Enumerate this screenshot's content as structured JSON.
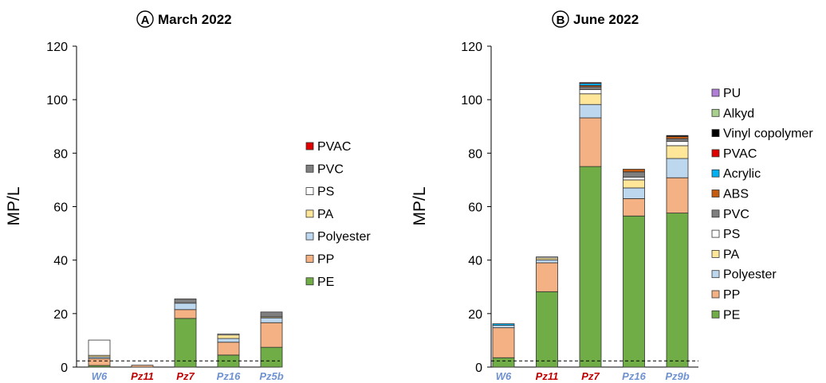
{
  "chart_data": [
    {
      "type": "bar",
      "stacked": true,
      "panel_letter": "A",
      "title": "March 2022",
      "ylabel": "MP/L",
      "ylim": [
        0,
        120
      ],
      "yticks": [
        0,
        20,
        40,
        60,
        80,
        100,
        120
      ],
      "dashed_reference_line": 2.3,
      "categories": [
        {
          "label": "W6",
          "color": "#6f92d0"
        },
        {
          "label": "Pz11",
          "color": "#c00000"
        },
        {
          "label": "Pz7",
          "color": "#c00000"
        },
        {
          "label": "Pz16",
          "color": "#6f92d0"
        },
        {
          "label": "Pz5b",
          "color": "#6f92d0"
        }
      ],
      "series": [
        {
          "name": "PE",
          "color": "#70ad47",
          "values": [
            0.6,
            0,
            18.2,
            4.5,
            7.4
          ]
        },
        {
          "name": "PP",
          "color": "#f4b183",
          "values": [
            2.6,
            0.7,
            3.3,
            4.8,
            9.2
          ]
        },
        {
          "name": "Polyester",
          "color": "#bdd7ee",
          "values": [
            0.6,
            0,
            2.4,
            1.4,
            1.8
          ]
        },
        {
          "name": "PA",
          "color": "#ffe699",
          "values": [
            0.6,
            0,
            0,
            1.3,
            0.4
          ]
        },
        {
          "name": "PS",
          "color": "#ffffff",
          "values": [
            5.7,
            0,
            0,
            0.4,
            0
          ]
        },
        {
          "name": "PVC",
          "color": "#7f7f7f",
          "values": [
            0,
            0,
            1.6,
            0,
            1.8
          ]
        },
        {
          "name": "PVAC",
          "color": "#e00000",
          "values": [
            0,
            0,
            0,
            0,
            0
          ]
        }
      ],
      "legend_position": "right"
    },
    {
      "type": "bar",
      "stacked": true,
      "panel_letter": "B",
      "title": "June 2022",
      "ylabel": "MP/L",
      "ylim": [
        0,
        120
      ],
      "yticks": [
        0,
        20,
        40,
        60,
        80,
        100,
        120
      ],
      "dashed_reference_line": 2.3,
      "categories": [
        {
          "label": "W6",
          "color": "#6f92d0"
        },
        {
          "label": "Pz11",
          "color": "#c00000"
        },
        {
          "label": "Pz7",
          "color": "#c00000"
        },
        {
          "label": "Pz16",
          "color": "#6f92d0"
        },
        {
          "label": "Pz9b",
          "color": "#6f92d0"
        }
      ],
      "series": [
        {
          "name": "PE",
          "color": "#70ad47",
          "values": [
            3.5,
            28.2,
            75.0,
            56.5,
            57.6
          ]
        },
        {
          "name": "PP",
          "color": "#f4b183",
          "values": [
            11.2,
            10.8,
            18.2,
            6.5,
            13.2
          ]
        },
        {
          "name": "Polyester",
          "color": "#bdd7ee",
          "values": [
            0.9,
            1.1,
            5.0,
            4.0,
            7.2
          ]
        },
        {
          "name": "PA",
          "color": "#ffe699",
          "values": [
            0,
            0.7,
            4.0,
            3.0,
            4.8
          ]
        },
        {
          "name": "PS",
          "color": "#ffffff",
          "values": [
            0,
            0.4,
            1.6,
            1.0,
            1.6
          ]
        },
        {
          "name": "PVC",
          "color": "#7f7f7f",
          "values": [
            0,
            0,
            1.0,
            2.0,
            1.0
          ]
        },
        {
          "name": "ABS",
          "color": "#c55a11",
          "values": [
            0,
            0,
            0.5,
            1.0,
            0.8
          ]
        },
        {
          "name": "Acrylic",
          "color": "#00b0f0",
          "values": [
            0.6,
            0,
            0.8,
            0,
            0
          ]
        },
        {
          "name": "PVAC",
          "color": "#e00000",
          "values": [
            0,
            0,
            0.3,
            0,
            0
          ]
        },
        {
          "name": "Vinyl copolymer",
          "color": "#000000",
          "values": [
            0,
            0,
            0,
            0,
            0.4
          ]
        },
        {
          "name": "Alkyd",
          "color": "#a9d18e",
          "values": [
            0,
            0,
            0,
            0,
            0
          ]
        },
        {
          "name": "PU",
          "color": "#b17ed8",
          "values": [
            0,
            0,
            0,
            0,
            0
          ]
        }
      ],
      "legend_position": "right"
    }
  ]
}
